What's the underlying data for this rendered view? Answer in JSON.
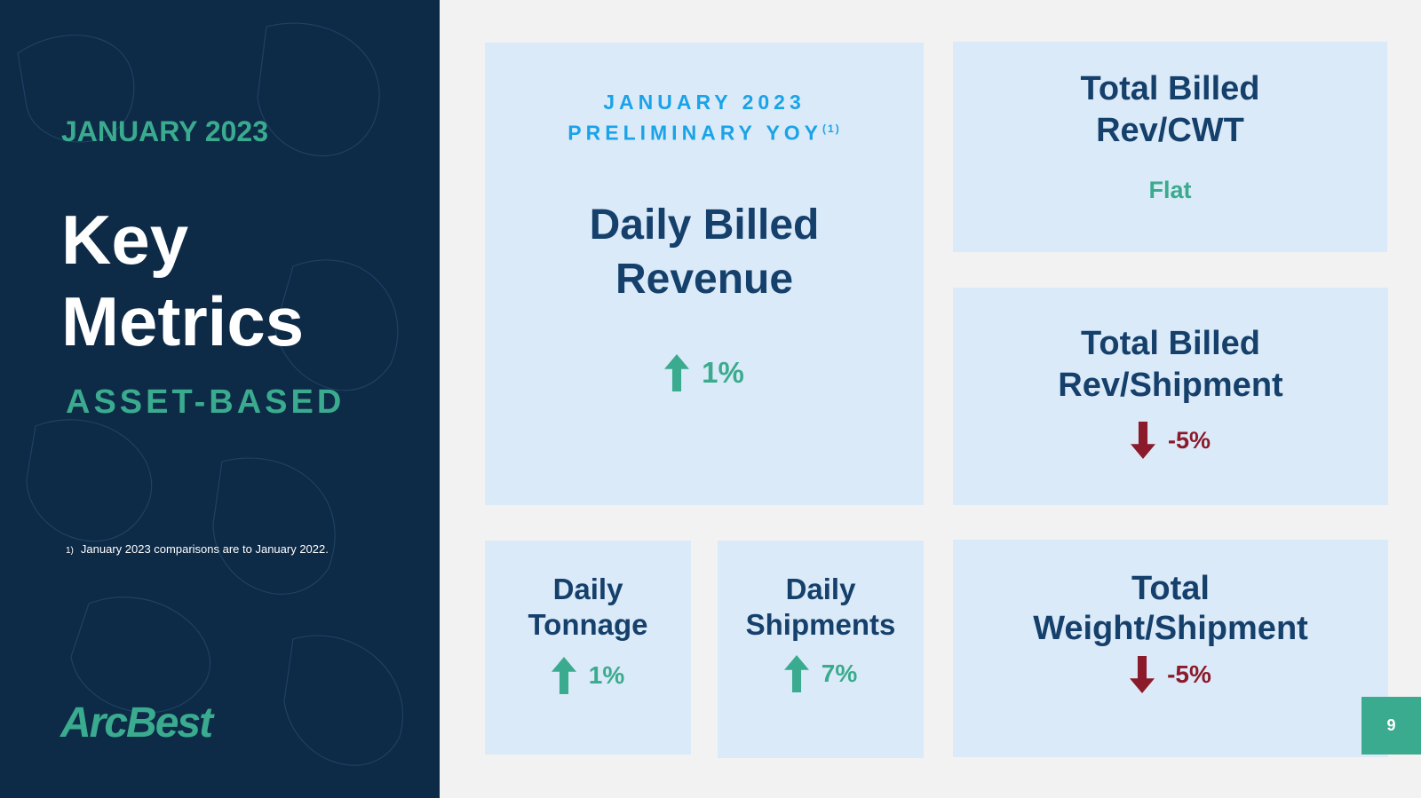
{
  "sidebar": {
    "date": "JANUARY 2023",
    "title_lines": [
      "Key",
      "Metrics"
    ],
    "subtitle": "ASSET-BASED",
    "footnote_marker": "1)",
    "footnote": "January 2023 comparisons are to January 2022.",
    "logo": "ArcBest"
  },
  "header": {
    "line1": "JANUARY 2023",
    "line2": "PRELIMINARY YOY",
    "superscript": "(1)"
  },
  "metrics": [
    {
      "label_lines": [
        "Daily Billed",
        "Revenue"
      ],
      "change": "1%",
      "direction": "up"
    },
    {
      "label_lines": [
        "Total Billed",
        "Rev/CWT"
      ],
      "change": "Flat",
      "direction": "flat"
    },
    {
      "label_lines": [
        "Total Billed",
        "Rev/Shipment"
      ],
      "change": "-5%",
      "direction": "down"
    },
    {
      "label_lines": [
        "Daily",
        "Tonnage"
      ],
      "change": "1%",
      "direction": "up"
    },
    {
      "label_lines": [
        "Daily",
        "Shipments"
      ],
      "change": "7%",
      "direction": "up"
    },
    {
      "label_lines": [
        "Total",
        "Weight/Shipment"
      ],
      "change": "-5%",
      "direction": "down"
    }
  ],
  "page_number": "9"
}
